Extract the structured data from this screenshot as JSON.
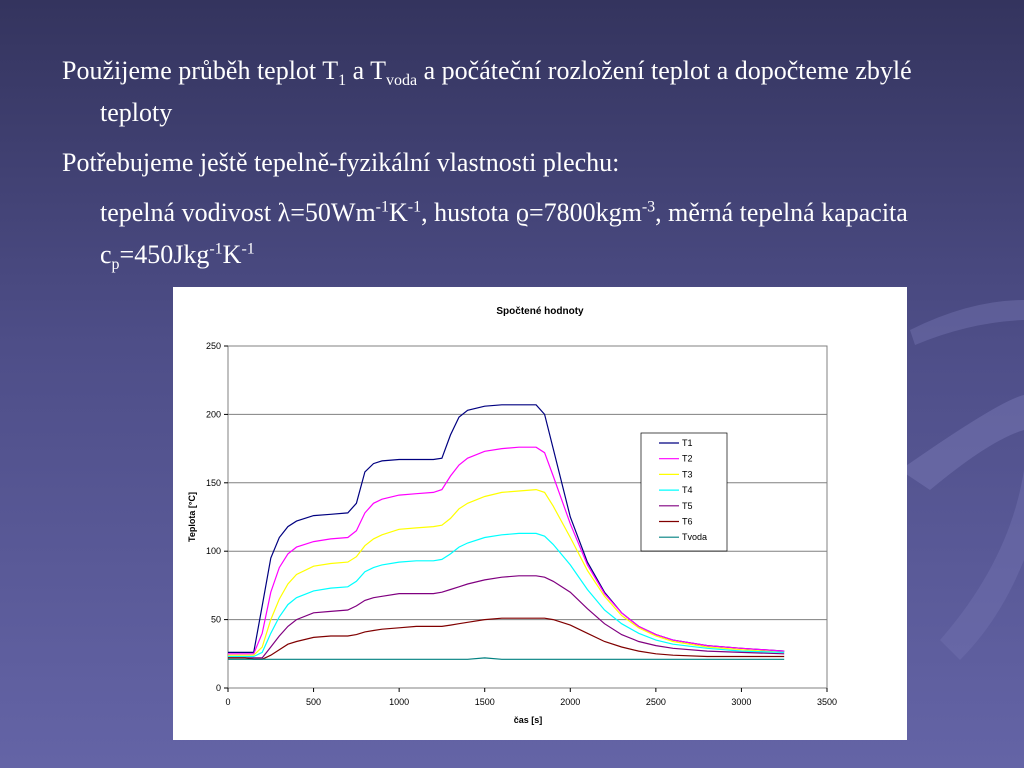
{
  "slide": {
    "bullets": [
      {
        "parts": [
          "Použijeme průběh teplot T",
          "1",
          " a T",
          "voda",
          " a počáteční rozložení teplot a dopočteme zbylé teploty"
        ]
      },
      {
        "parts": [
          "Potřebujeme ještě tepelně-fyzikální vlastnosti plechu:"
        ]
      },
      {
        "parts": [
          "tepelná vodivost λ=50Wm",
          "-1",
          "K",
          "-1",
          ", hustota ϱ=7800kgm",
          "-3",
          ", měrná tepelná kapacita c",
          "p",
          "=450Jkg",
          "-1",
          "K",
          "-1"
        ]
      }
    ]
  },
  "chart_data": {
    "type": "line",
    "title": "Spočtené hodnoty",
    "xlabel": "čas [s]",
    "ylabel": "Teplota [°C]",
    "x": [
      0,
      100,
      150,
      200,
      250,
      300,
      350,
      400,
      500,
      600,
      700,
      750,
      800,
      850,
      900,
      1000,
      1100,
      1200,
      1250,
      1300,
      1350,
      1400,
      1500,
      1600,
      1700,
      1800,
      1850,
      1900,
      2000,
      2100,
      2200,
      2300,
      2400,
      2500,
      2600,
      2800,
      3000,
      3250
    ],
    "series": [
      {
        "name": "T1",
        "color": "#000080",
        "values": [
          26,
          26,
          26,
          60,
          95,
          110,
          118,
          122,
          126,
          127,
          128,
          135,
          158,
          164,
          166,
          167,
          167,
          167,
          168,
          185,
          198,
          203,
          206,
          207,
          207,
          207,
          200,
          175,
          125,
          92,
          70,
          55,
          45,
          39,
          35,
          31,
          29,
          27
        ]
      },
      {
        "name": "T2",
        "color": "#ff00ff",
        "values": [
          25,
          25,
          25,
          40,
          70,
          88,
          98,
          103,
          107,
          109,
          110,
          115,
          128,
          135,
          138,
          141,
          142,
          143,
          145,
          155,
          163,
          168,
          173,
          175,
          176,
          176,
          172,
          155,
          120,
          90,
          69,
          55,
          45,
          39,
          35,
          31,
          29,
          27
        ]
      },
      {
        "name": "T3",
        "color": "#ffff00",
        "values": [
          24,
          24,
          24,
          30,
          50,
          65,
          76,
          83,
          89,
          91,
          92,
          96,
          104,
          109,
          112,
          116,
          117,
          118,
          119,
          124,
          131,
          135,
          140,
          143,
          144,
          145,
          143,
          133,
          110,
          86,
          67,
          53,
          44,
          38,
          34,
          30,
          28,
          26
        ]
      },
      {
        "name": "T4",
        "color": "#00ffff",
        "values": [
          23,
          23,
          23,
          26,
          40,
          52,
          61,
          66,
          71,
          73,
          74,
          78,
          85,
          88,
          90,
          92,
          93,
          93,
          94,
          98,
          103,
          106,
          110,
          112,
          113,
          113,
          111,
          105,
          90,
          72,
          57,
          47,
          40,
          35,
          32,
          29,
          27,
          26
        ]
      },
      {
        "name": "T5",
        "color": "#800080",
        "values": [
          22,
          22,
          22,
          22,
          30,
          38,
          45,
          50,
          55,
          56,
          57,
          60,
          64,
          66,
          67,
          69,
          69,
          69,
          70,
          72,
          74,
          76,
          79,
          81,
          82,
          82,
          81,
          78,
          70,
          58,
          47,
          39,
          34,
          31,
          29,
          27,
          26,
          25
        ]
      },
      {
        "name": "T6",
        "color": "#800000",
        "values": [
          22,
          22,
          21,
          21,
          24,
          28,
          32,
          34,
          37,
          38,
          38,
          39,
          41,
          42,
          43,
          44,
          45,
          45,
          45,
          46,
          47,
          48,
          50,
          51,
          51,
          51,
          51,
          50,
          46,
          40,
          34,
          30,
          27,
          25,
          24,
          23,
          23,
          23
        ]
      },
      {
        "name": "Tvoda",
        "color": "#008080",
        "values": [
          21,
          21,
          21,
          21,
          21,
          21,
          21,
          21,
          21,
          21,
          21,
          21,
          21,
          21,
          21,
          21,
          21,
          21,
          21,
          21,
          21,
          21,
          22,
          21,
          21,
          21,
          21,
          21,
          21,
          21,
          21,
          21,
          21,
          21,
          21,
          21,
          21,
          21
        ]
      }
    ],
    "xlim": [
      0,
      3500
    ],
    "xticks": [
      0,
      500,
      1000,
      1500,
      2000,
      2500,
      3000,
      3500
    ],
    "ylim": [
      0,
      250
    ],
    "yticks": [
      0,
      50,
      100,
      150,
      200,
      250
    ],
    "grid": true,
    "legend": "right"
  }
}
